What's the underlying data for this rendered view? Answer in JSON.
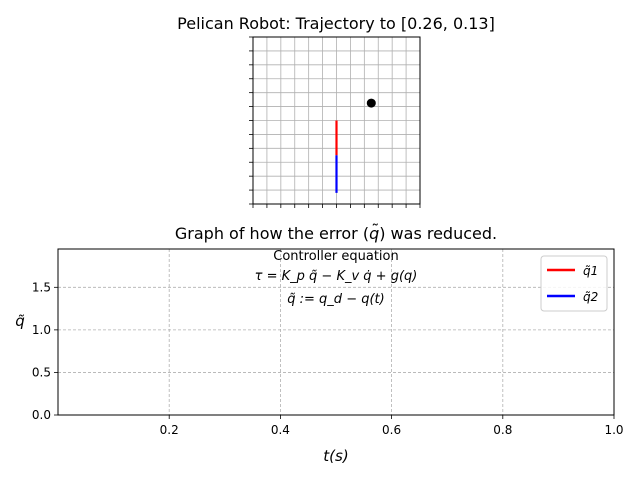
{
  "top_plot": {
    "title": "Pelican Robot: Trajectory to [0.26, 0.13]",
    "grid": true,
    "xlim": [
      0,
      12
    ],
    "ylim": [
      0,
      12
    ],
    "ticks": [
      0,
      1,
      2,
      3,
      4,
      5,
      6,
      7,
      8,
      9,
      10,
      11,
      12
    ],
    "links": [
      {
        "name": "link-1",
        "color": "#ff0000",
        "from": [
          6,
          6
        ],
        "to": [
          6,
          3.5
        ]
      },
      {
        "name": "link-2",
        "color": "#0000ff",
        "from": [
          6,
          3.5
        ],
        "to": [
          6,
          0.8
        ]
      }
    ],
    "target": {
      "x": 8.5,
      "y": 7.25,
      "color": "#000000"
    }
  },
  "chart_data": {
    "type": "line",
    "title": "Graph of how the error ($\\tilde{q}$) was reduced.",
    "title_plain": "Graph of how the error (q̃) was reduced.",
    "xlabel": "t(s)",
    "ylabel": "q̃",
    "xlim": [
      0,
      1
    ],
    "ylim": [
      0,
      1.95
    ],
    "xticks": [
      0.2,
      0.4,
      0.6,
      0.8,
      1.0
    ],
    "xtick_labels": [
      "0.2",
      "0.4",
      "0.6",
      "0.8",
      "1.0"
    ],
    "yticks": [
      0.0,
      0.5,
      1.0,
      1.5
    ],
    "ytick_labels": [
      "0.0",
      "0.5",
      "1.0",
      "1.5"
    ],
    "grid": true,
    "legend_placement": "top-right",
    "series": [
      {
        "name": "q̃1",
        "color": "#ff0000",
        "x": [],
        "y": []
      },
      {
        "name": "q̃2",
        "color": "#0000ff",
        "x": [],
        "y": []
      }
    ],
    "annotation": {
      "heading": "Controller equation",
      "line1": "τ = K_p q̃ − K_v q̇ + g(q)",
      "line2": "q̃ := q_d − q(t)"
    }
  }
}
